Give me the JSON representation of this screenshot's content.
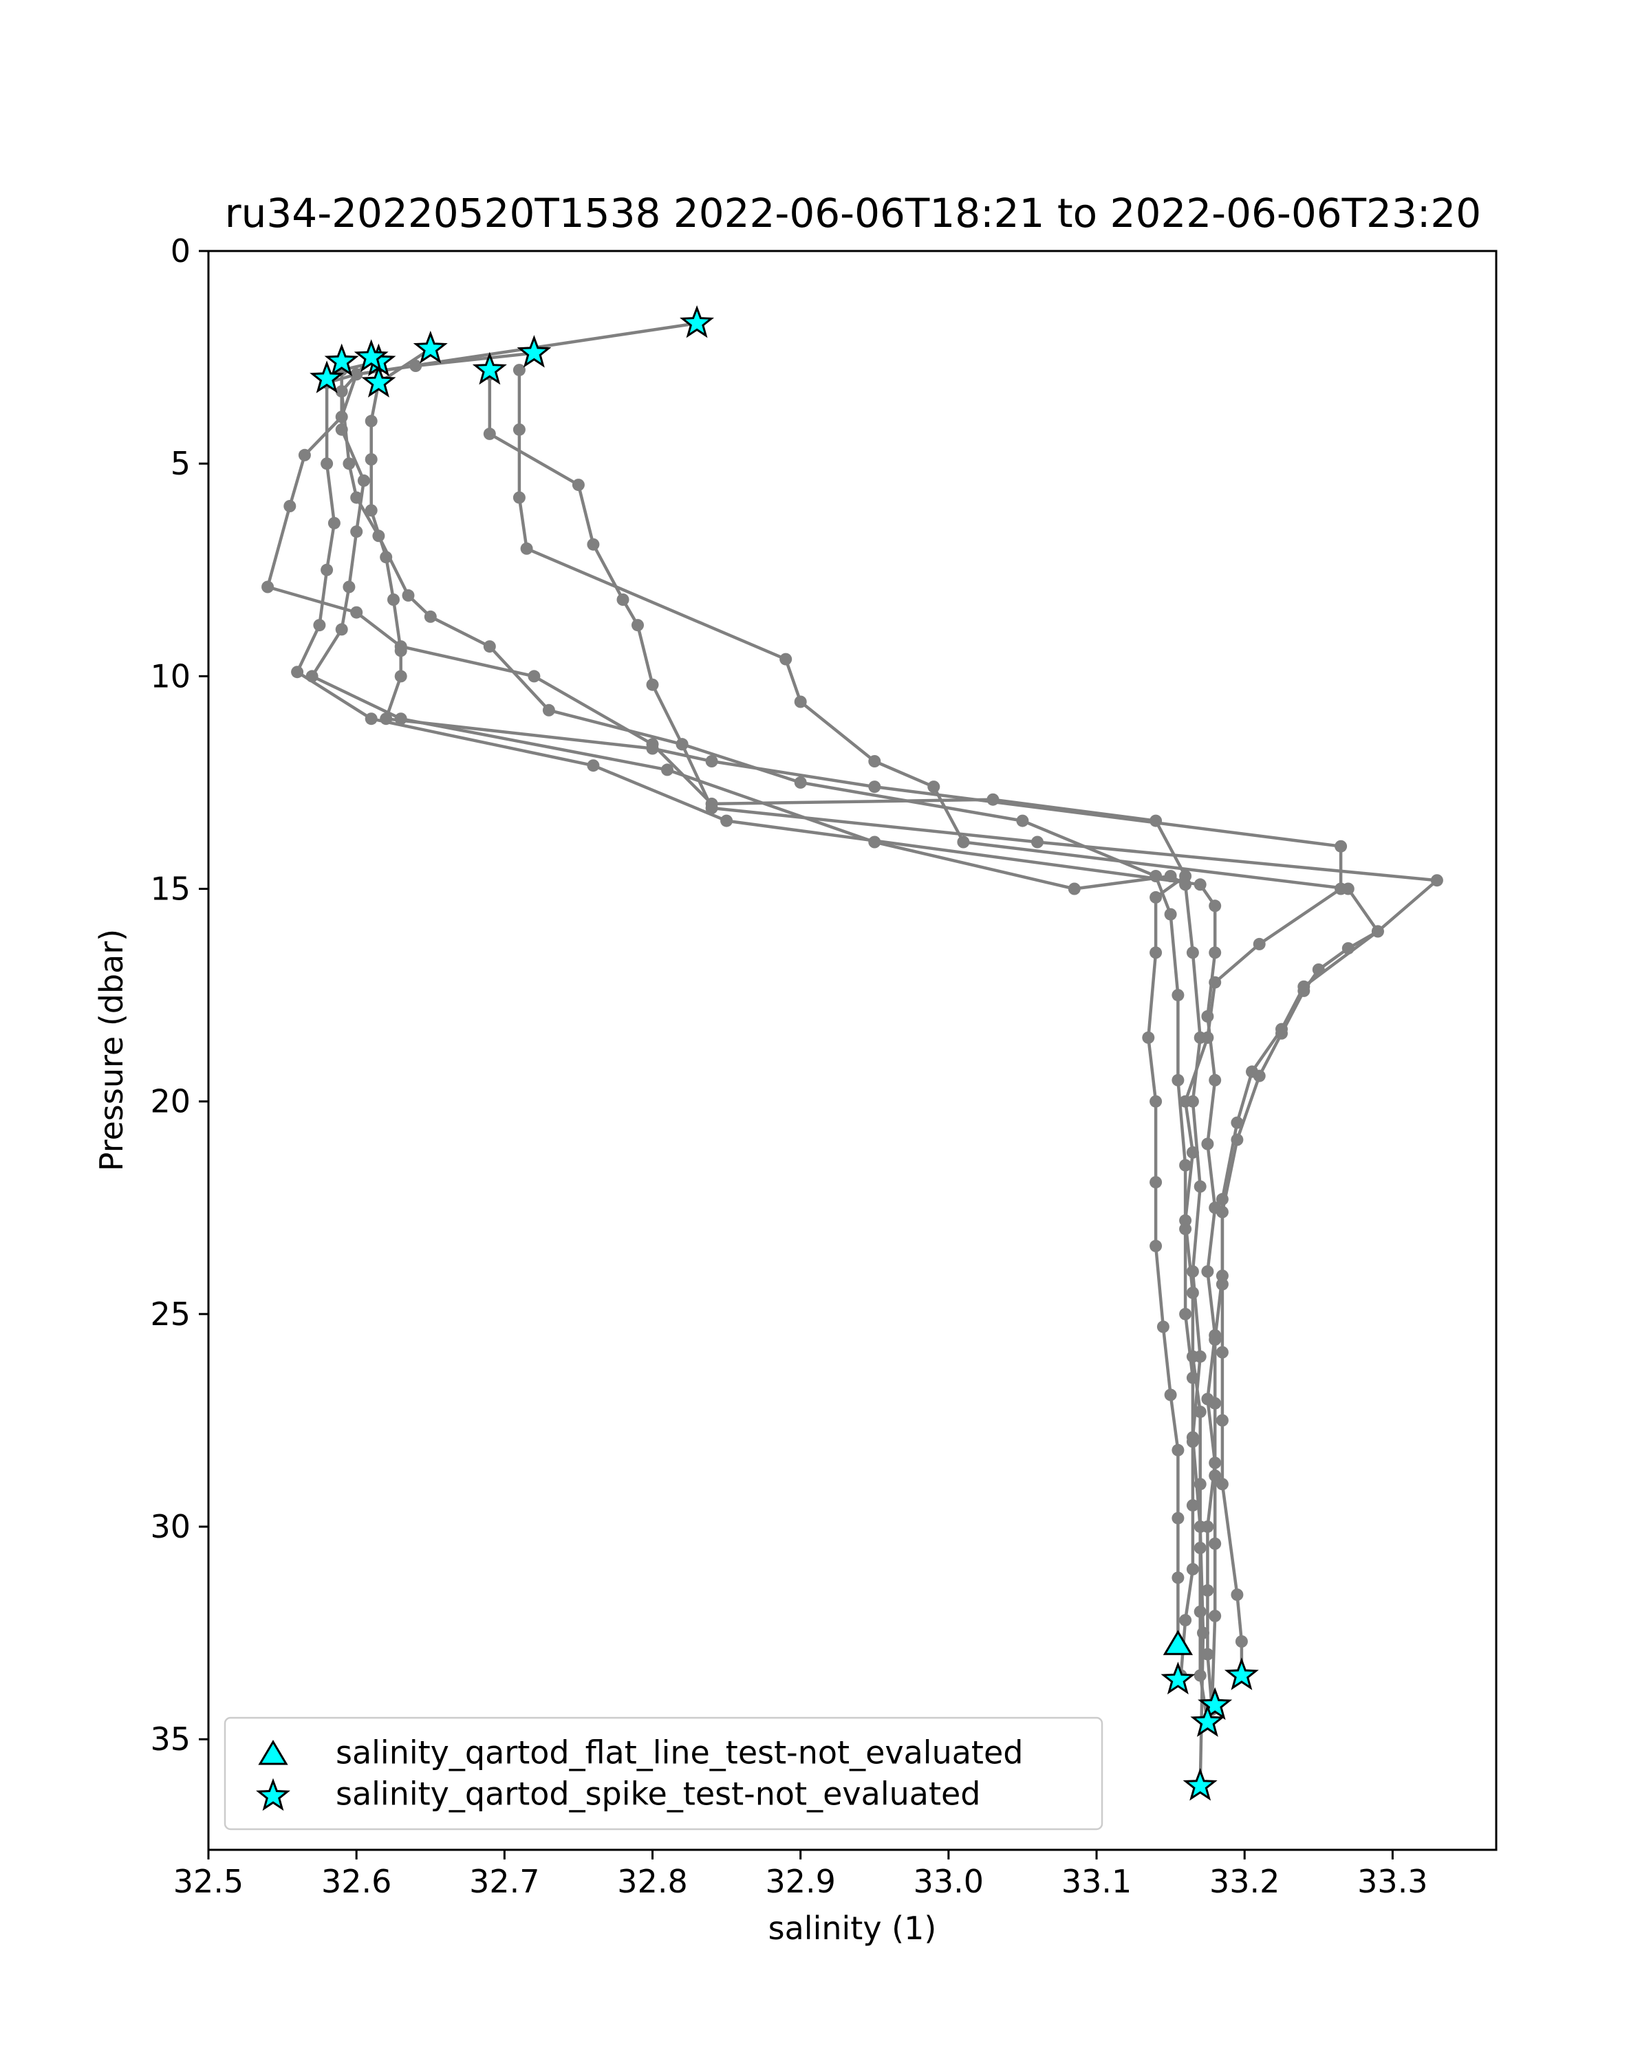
{
  "chart_data": {
    "type": "scatter",
    "title": "ru34-20220520T1538 2022-06-06T18:21 to 2022-06-06T23:20",
    "xlabel": "salinity (1)",
    "ylabel": "Pressure (dbar)",
    "xlim": [
      32.5,
      33.37
    ],
    "ylim": [
      37.6,
      0
    ],
    "y_inverted": true,
    "xticks": [
      32.5,
      32.6,
      32.7,
      32.8,
      32.9,
      33.0,
      33.1,
      33.2,
      33.3
    ],
    "xtick_labels": [
      "32.5",
      "32.6",
      "32.7",
      "32.8",
      "32.9",
      "33.0",
      "33.1",
      "33.2",
      "33.3"
    ],
    "yticks": [
      0,
      5,
      10,
      15,
      20,
      25,
      30,
      35
    ],
    "ytick_labels": [
      "0",
      "5",
      "10",
      "15",
      "20",
      "25",
      "30",
      "35"
    ],
    "grid": false,
    "legend_position": "lower-left",
    "profile_color": "#808080",
    "marker_fill": "#00ffff",
    "marker_edge": "#000000",
    "series": [
      {
        "name": "",
        "style": "profile-lines",
        "profiles": [
          [
            [
              32.83,
              1.7
            ],
            [
              32.6,
              2.9
            ],
            [
              32.58,
              3.1
            ],
            [
              32.58,
              5.0
            ],
            [
              32.585,
              6.4
            ],
            [
              32.58,
              7.5
            ],
            [
              32.575,
              8.8
            ],
            [
              32.56,
              9.9
            ],
            [
              32.61,
              11.0
            ],
            [
              32.76,
              12.1
            ],
            [
              32.85,
              13.4
            ],
            [
              33.17,
              14.9
            ],
            [
              33.18,
              15.4
            ],
            [
              33.18,
              16.5
            ],
            [
              33.175,
              18.0
            ],
            [
              33.18,
              19.5
            ],
            [
              33.175,
              21.0
            ],
            [
              33.18,
              22.5
            ],
            [
              33.175,
              24.0
            ],
            [
              33.18,
              25.5
            ],
            [
              33.175,
              27.0
            ],
            [
              33.18,
              28.5
            ],
            [
              33.175,
              30.0
            ],
            [
              33.175,
              31.5
            ],
            [
              33.175,
              33.0
            ],
            [
              33.178,
              34.3
            ]
          ],
          [
            [
              32.72,
              2.4
            ],
            [
              32.64,
              2.7
            ],
            [
              32.6,
              2.9
            ],
            [
              32.59,
              3.9
            ],
            [
              32.565,
              4.8
            ],
            [
              32.555,
              6.0
            ],
            [
              32.54,
              7.9
            ],
            [
              32.6,
              8.5
            ],
            [
              32.63,
              9.3
            ],
            [
              32.72,
              10.0
            ],
            [
              32.8,
              11.6
            ],
            [
              32.84,
              13.0
            ],
            [
              33.03,
              12.9
            ],
            [
              33.14,
              13.4
            ],
            [
              33.16,
              14.7
            ],
            [
              33.14,
              15.2
            ],
            [
              33.14,
              16.5
            ],
            [
              33.135,
              18.5
            ],
            [
              33.14,
              20.0
            ],
            [
              33.14,
              21.9
            ],
            [
              33.14,
              23.4
            ],
            [
              33.145,
              25.3
            ],
            [
              33.15,
              26.9
            ],
            [
              33.155,
              28.2
            ],
            [
              33.155,
              29.8
            ],
            [
              33.155,
              31.2
            ],
            [
              33.155,
              32.8
            ]
          ],
          [
            [
              32.65,
              2.3
            ],
            [
              32.615,
              3.1
            ],
            [
              32.61,
              4.0
            ],
            [
              32.61,
              4.9
            ],
            [
              32.61,
              6.1
            ],
            [
              32.62,
              7.2
            ],
            [
              32.625,
              8.2
            ],
            [
              32.63,
              9.4
            ],
            [
              32.63,
              10.0
            ],
            [
              32.62,
              11.0
            ],
            [
              32.8,
              11.7
            ],
            [
              32.84,
              12.0
            ],
            [
              32.95,
              12.6
            ],
            [
              33.265,
              14.0
            ],
            [
              33.265,
              15.0
            ],
            [
              33.21,
              16.3
            ],
            [
              33.18,
              17.2
            ],
            [
              33.175,
              18.5
            ],
            [
              33.16,
              20.0
            ],
            [
              33.165,
              21.2
            ],
            [
              33.16,
              22.8
            ],
            [
              33.165,
              24.5
            ],
            [
              33.165,
              26.0
            ],
            [
              33.17,
              27.3
            ],
            [
              33.17,
              29.0
            ],
            [
              33.17,
              30.5
            ],
            [
              33.17,
              32.0
            ],
            [
              33.17,
              33.5
            ],
            [
              33.175,
              34.6
            ]
          ],
          [
            [
              32.69,
              2.9
            ],
            [
              32.69,
              4.3
            ],
            [
              32.75,
              5.5
            ],
            [
              32.76,
              6.9
            ],
            [
              32.78,
              8.2
            ],
            [
              32.79,
              8.8
            ],
            [
              32.8,
              10.2
            ],
            [
              32.82,
              11.6
            ],
            [
              32.84,
              13.1
            ],
            [
              33.06,
              13.9
            ],
            [
              33.33,
              14.8
            ],
            [
              33.29,
              16.0
            ],
            [
              33.27,
              16.4
            ],
            [
              33.25,
              16.9
            ],
            [
              33.24,
              17.4
            ],
            [
              33.225,
              18.4
            ],
            [
              33.21,
              19.4
            ],
            [
              33.195,
              20.9
            ],
            [
              33.185,
              22.6
            ],
            [
              33.185,
              24.1
            ],
            [
              33.18,
              25.6
            ],
            [
              33.18,
              27.1
            ],
            [
              33.18,
              28.8
            ],
            [
              33.18,
              30.4
            ],
            [
              33.18,
              32.1
            ],
            [
              33.178,
              34.2
            ]
          ],
          [
            [
              32.615,
              2.6
            ],
            [
              32.59,
              2.8
            ],
            [
              32.59,
              4.2
            ],
            [
              32.605,
              5.4
            ],
            [
              32.6,
              6.6
            ],
            [
              32.595,
              7.9
            ],
            [
              32.59,
              8.9
            ],
            [
              32.57,
              10.0
            ],
            [
              32.63,
              11.0
            ],
            [
              32.81,
              12.2
            ],
            [
              32.95,
              13.9
            ],
            [
              33.085,
              15.0
            ],
            [
              33.15,
              14.7
            ],
            [
              33.16,
              14.9
            ],
            [
              33.165,
              16.5
            ],
            [
              33.17,
              18.5
            ],
            [
              33.165,
              20.0
            ],
            [
              33.17,
              22.0
            ],
            [
              33.165,
              24.0
            ],
            [
              33.17,
              26.0
            ],
            [
              33.165,
              27.9
            ],
            [
              33.17,
              30.0
            ],
            [
              33.172,
              32.5
            ],
            [
              33.17,
              36.1
            ]
          ],
          [
            [
              32.71,
              2.8
            ],
            [
              32.71,
              4.2
            ],
            [
              32.71,
              5.8
            ],
            [
              32.715,
              7.0
            ],
            [
              32.89,
              9.6
            ],
            [
              32.9,
              10.6
            ],
            [
              32.95,
              12.0
            ],
            [
              32.99,
              12.6
            ],
            [
              33.01,
              13.9
            ],
            [
              33.27,
              15.0
            ],
            [
              33.29,
              16.0
            ],
            [
              33.24,
              17.3
            ],
            [
              33.225,
              18.3
            ],
            [
              33.205,
              19.3
            ],
            [
              33.195,
              20.5
            ],
            [
              33.185,
              22.3
            ],
            [
              33.185,
              24.3
            ],
            [
              33.185,
              25.9
            ],
            [
              33.185,
              27.5
            ],
            [
              33.185,
              29.0
            ],
            [
              33.195,
              31.6
            ],
            [
              33.198,
              32.7
            ],
            [
              33.198,
              33.5
            ]
          ],
          [
            [
              32.61,
              2.5
            ],
            [
              32.59,
              3.3
            ],
            [
              32.595,
              5.0
            ],
            [
              32.6,
              5.8
            ],
            [
              32.615,
              6.7
            ],
            [
              32.635,
              8.1
            ],
            [
              32.65,
              8.6
            ],
            [
              32.69,
              9.3
            ],
            [
              32.73,
              10.8
            ],
            [
              32.82,
              11.6
            ],
            [
              32.9,
              12.5
            ],
            [
              33.05,
              13.4
            ],
            [
              33.14,
              14.7
            ],
            [
              33.15,
              15.6
            ],
            [
              33.155,
              17.5
            ],
            [
              33.155,
              19.5
            ],
            [
              33.16,
              21.5
            ],
            [
              33.16,
              23.0
            ],
            [
              33.16,
              25.0
            ],
            [
              33.165,
              26.5
            ],
            [
              33.165,
              28.0
            ],
            [
              33.165,
              29.5
            ],
            [
              33.165,
              31.0
            ],
            [
              33.16,
              32.2
            ],
            [
              33.157,
              33.5
            ]
          ]
        ]
      },
      {
        "name": "salinity_qartod_flat_line_test-not_evaluated",
        "marker": "triangle",
        "points": [
          [
            33.155,
            32.8
          ]
        ]
      },
      {
        "name": "salinity_qartod_spike_test-not_evaluated",
        "marker": "star",
        "points": [
          [
            32.83,
            1.7
          ],
          [
            32.72,
            2.4
          ],
          [
            32.65,
            2.3
          ],
          [
            32.615,
            2.6
          ],
          [
            32.61,
            2.5
          ],
          [
            32.59,
            2.6
          ],
          [
            32.58,
            3.0
          ],
          [
            32.615,
            3.1
          ],
          [
            32.69,
            2.8
          ],
          [
            33.155,
            33.6
          ],
          [
            33.198,
            33.5
          ],
          [
            33.18,
            34.2
          ],
          [
            33.175,
            34.6
          ],
          [
            33.17,
            36.1
          ]
        ]
      }
    ]
  }
}
